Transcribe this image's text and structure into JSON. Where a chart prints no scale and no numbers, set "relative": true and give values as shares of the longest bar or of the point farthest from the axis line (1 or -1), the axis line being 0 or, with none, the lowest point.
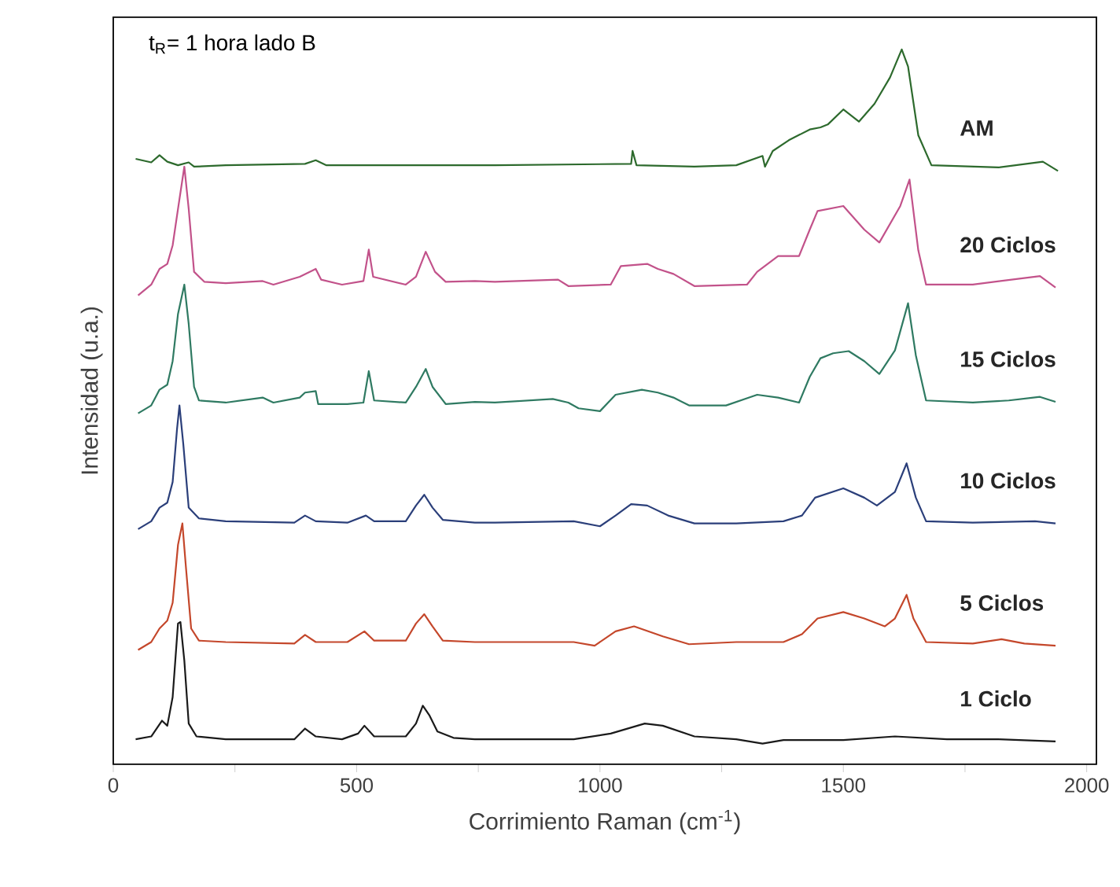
{
  "chart_data": {
    "type": "line",
    "title": "t$_{R}$= 1 hora lado B",
    "xlabel": "Corrimiento Raman (cm$^{-1}$)",
    "ylabel": "Intensidad (u.a.)",
    "relative": true,
    "xlim": [
      0,
      2020
    ],
    "xticks": [
      0,
      {
        "value": 250,
        "label": null
      },
      500,
      {
        "value": 750,
        "label": null
      },
      1000,
      {
        "value": 1250,
        "label": null
      },
      1500,
      {
        "value": 1750,
        "label": null
      },
      2000
    ],
    "legend": false,
    "grid": false,
    "marker": "none",
    "line_style": "solid",
    "series": [
      {
        "name": "1 Ciclo",
        "color": "#1a1a1a",
        "x": [
          46,
          78,
          100,
          111,
          122,
          133,
          138,
          146,
          155,
          171,
          231,
          372,
          394,
          416,
          470,
          503,
          516,
          536,
          601,
          622,
          636,
          650,
          666,
          699,
          743,
          784,
          946,
          1022,
          1092,
          1129,
          1194,
          1280,
          1334,
          1377,
          1453,
          1500,
          1606,
          1713,
          1819,
          1936
        ],
        "values": [
          0.035,
          0.039,
          0.061,
          0.054,
          0.094,
          0.197,
          0.199,
          0.145,
          0.057,
          0.039,
          0.035,
          0.035,
          0.05,
          0.039,
          0.035,
          0.043,
          0.054,
          0.039,
          0.039,
          0.057,
          0.082,
          0.068,
          0.046,
          0.037,
          0.035,
          0.035,
          0.035,
          0.043,
          0.057,
          0.054,
          0.039,
          0.035,
          0.029,
          0.034,
          0.034,
          0.034,
          0.039,
          0.035,
          0.035,
          0.032
        ]
      },
      {
        "name": "5 Ciclos",
        "color": "#c4472b",
        "x": [
          51,
          78,
          95,
          111,
          122,
          133,
          142,
          149,
          160,
          176,
          231,
          372,
          394,
          416,
          481,
          516,
          536,
          601,
          622,
          639,
          656,
          677,
          743,
          784,
          946,
          989,
          1032,
          1070,
          1129,
          1183,
          1280,
          1377,
          1415,
          1447,
          1500,
          1543,
          1585,
          1606,
          1630,
          1644,
          1670,
          1766,
          1825,
          1872,
          1936
        ],
        "values": [
          0.16,
          0.171,
          0.19,
          0.201,
          0.226,
          0.307,
          0.337,
          0.278,
          0.19,
          0.173,
          0.171,
          0.169,
          0.181,
          0.171,
          0.171,
          0.186,
          0.173,
          0.173,
          0.197,
          0.21,
          0.193,
          0.173,
          0.171,
          0.171,
          0.171,
          0.166,
          0.186,
          0.193,
          0.179,
          0.168,
          0.171,
          0.171,
          0.182,
          0.204,
          0.213,
          0.204,
          0.193,
          0.204,
          0.237,
          0.204,
          0.171,
          0.169,
          0.175,
          0.169,
          0.166
        ]
      },
      {
        "name": "10 Ciclos",
        "color": "#2b3f7a",
        "x": [
          51,
          78,
          95,
          111,
          122,
          131,
          136,
          144,
          155,
          176,
          231,
          372,
          394,
          416,
          481,
          519,
          536,
          601,
          622,
          639,
          656,
          677,
          743,
          784,
          946,
          1000,
          1032,
          1064,
          1097,
          1140,
          1194,
          1280,
          1377,
          1415,
          1442,
          1500,
          1543,
          1569,
          1606,
          1630,
          1649,
          1670,
          1766,
          1894,
          1936
        ],
        "values": [
          0.329,
          0.34,
          0.359,
          0.366,
          0.395,
          0.469,
          0.502,
          0.447,
          0.359,
          0.344,
          0.34,
          0.338,
          0.348,
          0.34,
          0.338,
          0.348,
          0.34,
          0.34,
          0.362,
          0.377,
          0.359,
          0.342,
          0.338,
          0.338,
          0.34,
          0.333,
          0.348,
          0.364,
          0.362,
          0.348,
          0.337,
          0.337,
          0.34,
          0.348,
          0.373,
          0.386,
          0.373,
          0.362,
          0.381,
          0.421,
          0.373,
          0.34,
          0.338,
          0.34,
          0.337
        ]
      },
      {
        "name": "15 Ciclos",
        "color": "#2f7a62",
        "x": [
          51,
          78,
          95,
          111,
          122,
          133,
          146,
          155,
          166,
          176,
          231,
          307,
          329,
          383,
          394,
          416,
          421,
          481,
          514,
          525,
          536,
          601,
          622,
          642,
          656,
          683,
          743,
          784,
          903,
          935,
          956,
          1000,
          1032,
          1086,
          1119,
          1151,
          1183,
          1259,
          1323,
          1366,
          1409,
          1431,
          1453,
          1479,
          1511,
          1543,
          1574,
          1606,
          1633,
          1649,
          1670,
          1766,
          1840,
          1904,
          1936
        ],
        "values": [
          0.491,
          0.502,
          0.524,
          0.531,
          0.564,
          0.63,
          0.671,
          0.616,
          0.528,
          0.509,
          0.506,
          0.513,
          0.506,
          0.513,
          0.52,
          0.522,
          0.504,
          0.504,
          0.506,
          0.55,
          0.509,
          0.506,
          0.528,
          0.553,
          0.528,
          0.504,
          0.507,
          0.506,
          0.511,
          0.506,
          0.498,
          0.494,
          0.517,
          0.524,
          0.52,
          0.513,
          0.502,
          0.502,
          0.517,
          0.513,
          0.506,
          0.542,
          0.568,
          0.575,
          0.578,
          0.564,
          0.546,
          0.579,
          0.645,
          0.572,
          0.509,
          0.506,
          0.509,
          0.514,
          0.507
        ]
      },
      {
        "name": "20 Ciclos",
        "color": "#c2528a",
        "x": [
          51,
          78,
          95,
          111,
          122,
          133,
          146,
          155,
          166,
          187,
          231,
          307,
          329,
          383,
          416,
          427,
          470,
          514,
          525,
          534,
          601,
          622,
          642,
          661,
          683,
          743,
          784,
          914,
          935,
          1022,
          1043,
          1097,
          1119,
          1151,
          1194,
          1302,
          1323,
          1366,
          1409,
          1431,
          1447,
          1500,
          1543,
          1574,
          1617,
          1636,
          1654,
          1670,
          1766,
          1904,
          1936
        ],
        "values": [
          0.656,
          0.671,
          0.693,
          0.7,
          0.726,
          0.777,
          0.836,
          0.777,
          0.689,
          0.675,
          0.673,
          0.676,
          0.671,
          0.682,
          0.693,
          0.678,
          0.671,
          0.676,
          0.72,
          0.682,
          0.671,
          0.682,
          0.717,
          0.689,
          0.675,
          0.676,
          0.675,
          0.678,
          0.669,
          0.671,
          0.697,
          0.7,
          0.693,
          0.686,
          0.669,
          0.671,
          0.689,
          0.711,
          0.711,
          0.748,
          0.774,
          0.781,
          0.748,
          0.73,
          0.781,
          0.818,
          0.719,
          0.671,
          0.671,
          0.683,
          0.667
        ]
      },
      {
        "name": "AM",
        "color": "#2d6a2d",
        "x": [
          46,
          78,
          95,
          111,
          133,
          155,
          166,
          231,
          394,
          416,
          438,
          743,
          784,
          1064,
          1067,
          1075,
          1194,
          1280,
          1334,
          1339,
          1355,
          1388,
          1431,
          1453,
          1468,
          1500,
          1532,
          1564,
          1596,
          1620,
          1633,
          1654,
          1681,
          1819,
          1910,
          1941
        ],
        "values": [
          0.847,
          0.842,
          0.852,
          0.843,
          0.838,
          0.842,
          0.836,
          0.838,
          0.84,
          0.845,
          0.838,
          0.838,
          0.838,
          0.84,
          0.858,
          0.838,
          0.836,
          0.838,
          0.851,
          0.836,
          0.858,
          0.873,
          0.888,
          0.891,
          0.895,
          0.916,
          0.899,
          0.924,
          0.961,
          1.0,
          0.976,
          0.88,
          0.838,
          0.835,
          0.843,
          0.83
        ]
      }
    ]
  }
}
